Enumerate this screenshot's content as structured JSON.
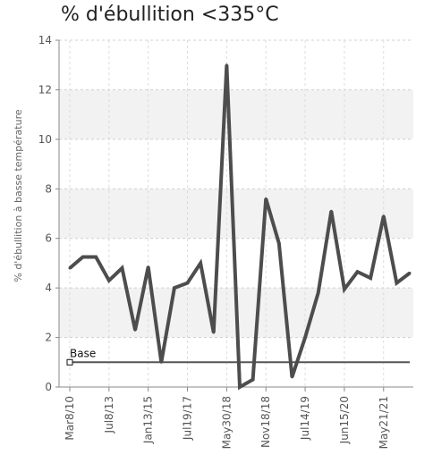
{
  "chart_data": {
    "type": "line",
    "title": "% d'ébullition <335°C",
    "ylabel": "% d'ébullition à basse température",
    "xlabel": "",
    "ylim": [
      0,
      14
    ],
    "yticks": [
      0,
      2,
      4,
      6,
      8,
      10,
      12,
      14
    ],
    "grid": true,
    "x_tick_labels": [
      "Mar8/10",
      "Jul8/13",
      "Jan13/15",
      "Jul19/17",
      "May30/18",
      "Nov18/18",
      "Jul14/19",
      "Jun15/20",
      "May21/21"
    ],
    "series": [
      {
        "name": "",
        "color": "#4d4d4d",
        "values": [
          4.8,
          5.25,
          5.25,
          4.3,
          4.8,
          2.3,
          4.85,
          1.0,
          4.0,
          4.2,
          5.0,
          2.2,
          13.0,
          0.0,
          0.3,
          7.6,
          5.8,
          0.4,
          2.0,
          3.8,
          7.1,
          3.95,
          4.65,
          4.4,
          6.9,
          4.2,
          4.6
        ]
      }
    ],
    "baseline": {
      "label": "Base",
      "value": 1.0,
      "color": "#555555"
    }
  }
}
